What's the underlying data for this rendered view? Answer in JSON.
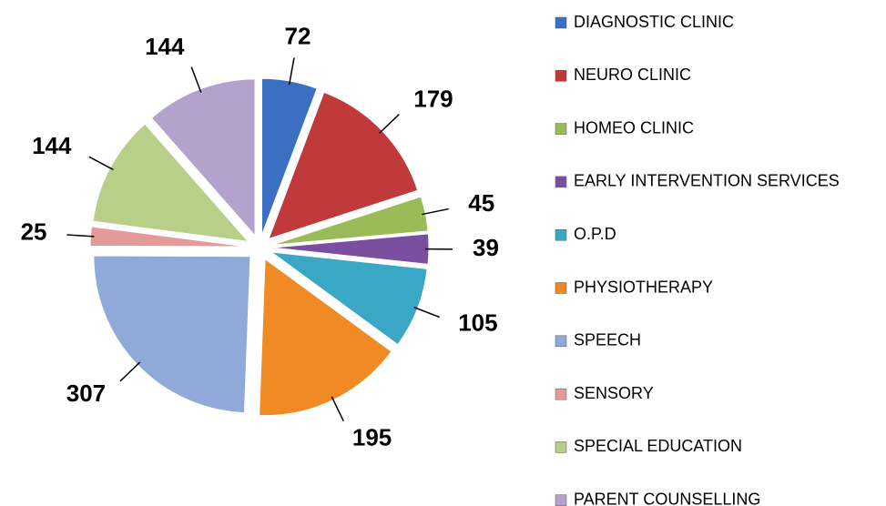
{
  "chart_data": {
    "type": "pie",
    "categories": [
      "DIAGNOSTIC CLINIC",
      "NEURO CLINIC",
      "HOMEO CLINIC",
      "EARLY INTERVENTION SERVICES",
      "O.P.D",
      "PHYSIOTHERAPY",
      "SPEECH",
      "SENSORY",
      "SPECIAL EDUCATION",
      "PARENT COUNSELLING"
    ],
    "values": [
      72,
      179,
      45,
      39,
      105,
      195,
      307,
      25,
      144,
      144
    ],
    "colors": [
      "#3a6fc4",
      "#c0393b",
      "#9bbb59",
      "#7b4fa0",
      "#3aa8c4",
      "#f08a24",
      "#8fa9d9",
      "#e59a9a",
      "#b8cf8a",
      "#b3a2cc"
    ]
  }
}
